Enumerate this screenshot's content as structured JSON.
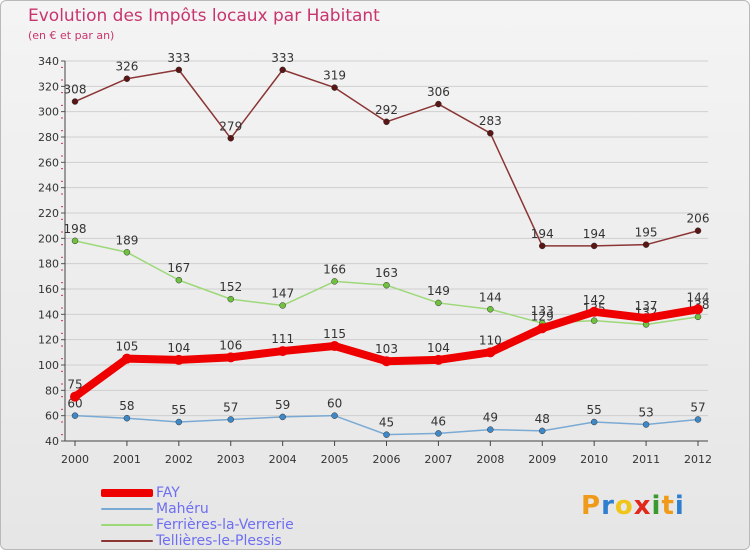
{
  "title": "Evolution des Impôts locaux par Habitant",
  "subtitle": "(en € et par an)",
  "logo": {
    "letters": [
      "P",
      "r",
      "o",
      "x",
      "i",
      "t",
      "i"
    ],
    "colors": [
      "#f09a1a",
      "#2f7fd0",
      "#f0c51a",
      "#e2281c",
      "#3a9a2e",
      "#f09a1a",
      "#2f7fd0"
    ]
  },
  "chart_data": {
    "type": "line",
    "title": "Evolution des Impôts locaux par Habitant",
    "subtitle": "(en € et par an)",
    "x": [
      "2000",
      "2001",
      "2002",
      "2003",
      "2004",
      "2005",
      "2006",
      "2007",
      "2008",
      "2009",
      "2010",
      "2011",
      "2012"
    ],
    "ylim": [
      40,
      340
    ],
    "yticks": [
      40,
      60,
      80,
      100,
      120,
      140,
      160,
      180,
      200,
      220,
      240,
      260,
      280,
      300,
      320,
      340
    ],
    "grid": true,
    "legend_position": "bottom-left",
    "series": [
      {
        "name": "Tellières-le-Plessis",
        "color": "#8b3535",
        "marker": "#5a1515",
        "values": [
          308,
          326,
          333,
          279,
          333,
          319,
          292,
          306,
          283,
          194,
          194,
          195,
          206
        ]
      },
      {
        "name": "Ferrières-la-Verrerie",
        "color": "#9dd879",
        "marker": "#6fc13f",
        "values": [
          198,
          189,
          167,
          152,
          147,
          166,
          163,
          149,
          144,
          133,
          135,
          132,
          138
        ]
      },
      {
        "name": "Mahéru",
        "color": "#7aaad4",
        "marker": "#3f88c8",
        "values": [
          60,
          58,
          55,
          57,
          59,
          60,
          45,
          46,
          49,
          48,
          55,
          53,
          57
        ]
      },
      {
        "name": "FAY",
        "color": "#ee0000",
        "marker": "#ee0000",
        "values": [
          75,
          105,
          104,
          106,
          111,
          115,
          103,
          104,
          110,
          129,
          142,
          137,
          144
        ]
      }
    ],
    "legend_order": [
      "FAY",
      "Mahéru",
      "Ferrières-la-Verrerie",
      "Tellières-le-Plessis"
    ]
  }
}
